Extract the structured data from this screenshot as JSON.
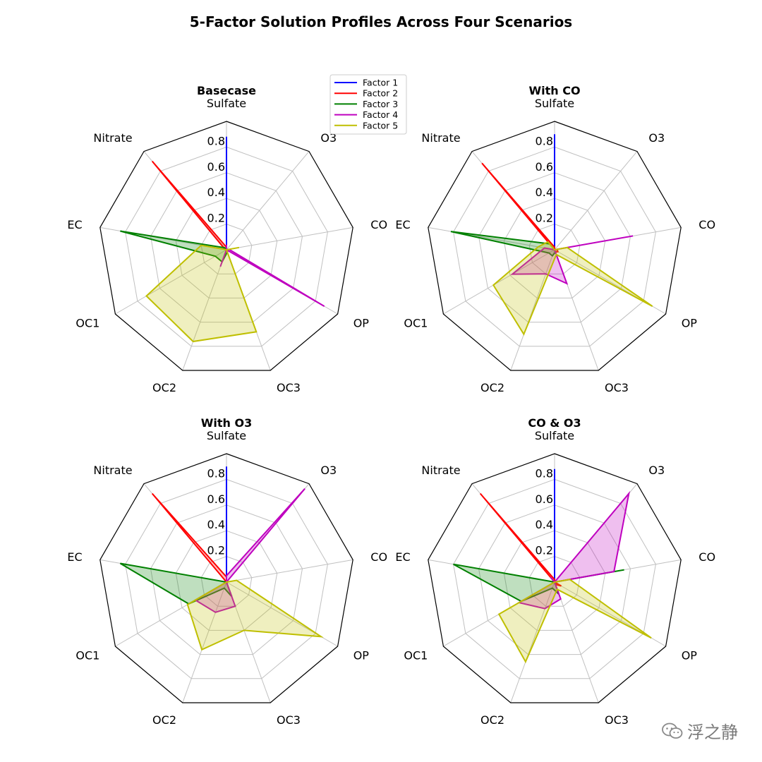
{
  "title": "5-Factor Solution Profiles Across Four Scenarios",
  "legend": {
    "placement": "top-center",
    "entries": [
      {
        "name": "Factor 1",
        "color": "#0000ff"
      },
      {
        "name": "Factor 2",
        "color": "#ff0000"
      },
      {
        "name": "Factor 3",
        "color": "#008000"
      },
      {
        "name": "Factor 4",
        "color": "#bf00bf"
      },
      {
        "name": "Factor 5",
        "color": "#bfbf00"
      }
    ]
  },
  "watermark": {
    "text": "浮之静",
    "icon": "wechat-icon"
  },
  "chart_data": [
    {
      "type": "radar",
      "title": "Basecase",
      "axes": [
        "Sulfate",
        "O3",
        "CO",
        "OP",
        "OC3",
        "OC2",
        "OC1",
        "EC",
        "Nitrate"
      ],
      "rlim": [
        0,
        1
      ],
      "rticks": [
        "0.2",
        "0.4",
        "0.6",
        "0.8"
      ],
      "grid": true,
      "series": [
        {
          "name": "Factor 1",
          "values": [
            0.88,
            0.0,
            0.0,
            0.0,
            0.01,
            0.0,
            0.0,
            0.0,
            0.0
          ]
        },
        {
          "name": "Factor 2",
          "values": [
            0.02,
            0.0,
            0.0,
            0.01,
            0.02,
            0.0,
            0.0,
            0.01,
            0.9
          ]
        },
        {
          "name": "Factor 3",
          "values": [
            0.0,
            0.0,
            0.0,
            0.0,
            0.02,
            0.1,
            0.1,
            0.84,
            0.02
          ]
        },
        {
          "name": "Factor 4",
          "values": [
            0.04,
            0.0,
            0.02,
            0.88,
            0.0,
            0.14,
            0.0,
            0.0,
            0.0
          ]
        },
        {
          "name": "Factor 5",
          "values": [
            0.0,
            0.0,
            0.1,
            0.0,
            0.68,
            0.76,
            0.72,
            0.2,
            0.0
          ]
        }
      ]
    },
    {
      "type": "radar",
      "title": "With CO",
      "axes": [
        "Sulfate",
        "O3",
        "CO",
        "OP",
        "OC3",
        "OC2",
        "OC1",
        "EC",
        "Nitrate"
      ],
      "rlim": [
        0,
        1
      ],
      "rticks": [
        "0.2",
        "0.4",
        "0.6",
        "0.8"
      ],
      "grid": true,
      "series": [
        {
          "name": "Factor 1",
          "values": [
            0.9,
            0.0,
            0.0,
            0.0,
            0.0,
            0.0,
            0.0,
            0.0,
            0.0
          ]
        },
        {
          "name": "Factor 2",
          "values": [
            0.02,
            0.0,
            0.02,
            0.03,
            0.02,
            0.0,
            0.0,
            0.0,
            0.88
          ]
        },
        {
          "name": "Factor 3",
          "values": [
            0.0,
            0.0,
            0.0,
            0.0,
            0.02,
            0.05,
            0.05,
            0.82,
            0.06
          ]
        },
        {
          "name": "Factor 4",
          "values": [
            0.0,
            0.0,
            0.62,
            0.0,
            0.28,
            0.2,
            0.38,
            0.08,
            0.0
          ]
        },
        {
          "name": "Factor 5",
          "values": [
            0.0,
            0.0,
            0.1,
            0.88,
            0.04,
            0.7,
            0.55,
            0.13,
            0.08
          ]
        }
      ]
    },
    {
      "type": "radar",
      "title": "With O3",
      "axes": [
        "Sulfate",
        "O3",
        "CO",
        "OP",
        "OC3",
        "OC2",
        "OC1",
        "EC",
        "Nitrate"
      ],
      "rlim": [
        0,
        1
      ],
      "rticks": [
        "0.2",
        "0.4",
        "0.6",
        "0.8"
      ],
      "grid": true,
      "series": [
        {
          "name": "Factor 1",
          "values": [
            0.9,
            0.0,
            0.0,
            0.0,
            0.0,
            0.0,
            0.0,
            0.0,
            0.0
          ]
        },
        {
          "name": "Factor 2",
          "values": [
            0.04,
            0.0,
            0.0,
            0.0,
            0.02,
            0.0,
            0.0,
            0.0,
            0.9
          ]
        },
        {
          "name": "Factor 3",
          "values": [
            0.0,
            0.0,
            0.0,
            0.0,
            0.12,
            0.05,
            0.34,
            0.84,
            0.0
          ]
        },
        {
          "name": "Factor 4",
          "values": [
            0.05,
            0.95,
            0.0,
            0.0,
            0.2,
            0.25,
            0.28,
            0.0,
            0.0
          ]
        },
        {
          "name": "Factor 5",
          "values": [
            0.0,
            0.0,
            0.08,
            0.85,
            0.4,
            0.56,
            0.35,
            0.0,
            0.0
          ]
        }
      ]
    },
    {
      "type": "radar",
      "title": "CO & O3",
      "axes": [
        "Sulfate",
        "O3",
        "CO",
        "OP",
        "OC3",
        "OC2",
        "OC1",
        "EC",
        "Nitrate"
      ],
      "rlim": [
        0,
        1
      ],
      "rticks": [
        "0.2",
        "0.4",
        "0.6",
        "0.8"
      ],
      "grid": true,
      "series": [
        {
          "name": "Factor 1",
          "values": [
            0.88,
            0.0,
            0.0,
            0.0,
            0.0,
            0.0,
            0.0,
            0.0,
            0.0
          ]
        },
        {
          "name": "Factor 2",
          "values": [
            0.02,
            0.0,
            0.0,
            0.06,
            0.02,
            0.0,
            0.0,
            0.0,
            0.9
          ]
        },
        {
          "name": "Factor 3",
          "values": [
            0.0,
            0.0,
            0.55,
            0.0,
            0.1,
            0.05,
            0.3,
            0.8,
            0.0
          ]
        },
        {
          "name": "Factor 4",
          "values": [
            0.0,
            0.9,
            0.47,
            0.0,
            0.14,
            0.22,
            0.32,
            0.0,
            0.05
          ]
        },
        {
          "name": "Factor 5",
          "values": [
            0.0,
            0.0,
            0.12,
            0.87,
            0.06,
            0.66,
            0.5,
            0.0,
            0.0
          ]
        }
      ]
    }
  ]
}
